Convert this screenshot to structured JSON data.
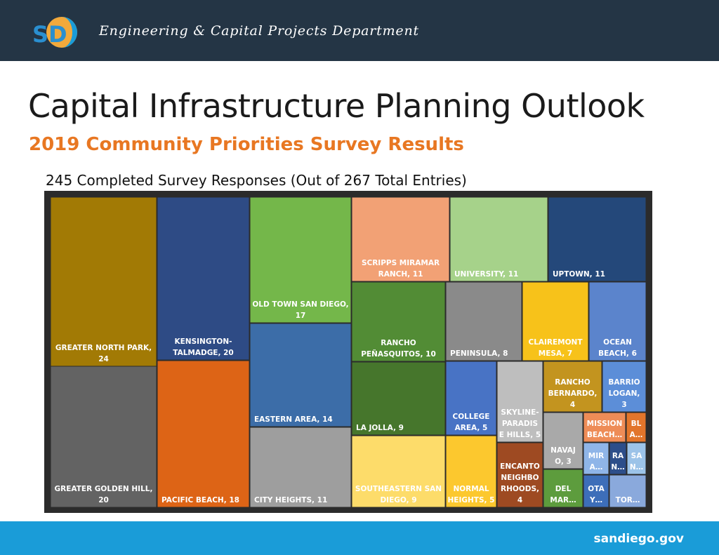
{
  "header": {
    "logo_text": "SD",
    "department": "Engineering & Capital Projects Department"
  },
  "page": {
    "title": "Capital Infrastructure Planning Outlook",
    "subtitle": "2019 Community Priorities Survey Results",
    "responses_note": "245 Completed Survey Responses (Out of 267 Total Entries)"
  },
  "footer": {
    "site": "sandiego.gov"
  },
  "colors": {
    "header_bg": "#243545",
    "footer_bg": "#1a9cd8",
    "accent_orange": "#e87722"
  },
  "chart_data": {
    "type": "treemap",
    "nodes": [
      {
        "label": "GREATER NORTH PARK, 24",
        "value": 24,
        "color": "#a27a05"
      },
      {
        "label": "GREATER GOLDEN HILL, 20",
        "value": 20,
        "color": "#636363"
      },
      {
        "label": "KENSINGTON-TALMADGE, 20",
        "value": 20,
        "color": "#2e4b85"
      },
      {
        "label": "PACIFIC BEACH, 18",
        "value": 18,
        "color": "#dd6416"
      },
      {
        "label": "OLD TOWN SAN DIEGO, 17",
        "value": 17,
        "color": "#74b74a"
      },
      {
        "label": "EASTERN AREA, 14",
        "value": 14,
        "color": "#3c6da8"
      },
      {
        "label": "CITY HEIGHTS, 11",
        "value": 11,
        "color": "#9e9e9e"
      },
      {
        "label": "SCRIPPS MIRAMAR RANCH, 11",
        "value": 11,
        "color": "#f2a175"
      },
      {
        "label": "UNIVERSITY, 11",
        "value": 11,
        "color": "#a6d28a"
      },
      {
        "label": "UPTOWN, 11",
        "value": 11,
        "color": "#24487a"
      },
      {
        "label": "RANCHO PEÑASQUITOS, 10",
        "value": 10,
        "color": "#528c35"
      },
      {
        "label": "LA JOLLA, 9",
        "value": 9,
        "color": "#46762c"
      },
      {
        "label": "SOUTHEASTERN SAN DIEGO, 9",
        "value": 9,
        "color": "#fddc6a"
      },
      {
        "label": "PENINSULA, 8",
        "value": 8,
        "color": "#8a8a8a"
      },
      {
        "label": "CLAIREMONT MESA, 7",
        "value": 7,
        "color": "#f7c21a"
      },
      {
        "label": "OCEAN BEACH, 6",
        "value": 6,
        "color": "#5b84cc"
      },
      {
        "label": "COLLEGE AREA, 5",
        "value": 5,
        "color": "#4873c5"
      },
      {
        "label": "SKYLINE-PARADISE HILLS, 5",
        "value": 5,
        "color": "#bebebe"
      },
      {
        "label": "NORMAL HEIGHTS, 5",
        "value": 5,
        "color": "#fcc82e"
      },
      {
        "label": "ENCANTO NEIGHBORHOODS, 4",
        "value": 4,
        "color": "#9e4a22"
      },
      {
        "label": "RANCHO BERNARDO, 4",
        "value": 4,
        "color": "#c3941f"
      },
      {
        "label": "BARRIO LOGAN, 3",
        "value": 3,
        "color": "#5c8ed8"
      },
      {
        "label": "NAVAJO, 3",
        "value": 3,
        "color": "#a9a9a9"
      },
      {
        "label": "MISSION BEACH…",
        "value": null,
        "color": "#ee8c57"
      },
      {
        "label": "BL A…",
        "value": null,
        "color": "#e2752b"
      },
      {
        "label": "DEL MAR…",
        "value": null,
        "color": "#5d9c3d"
      },
      {
        "label": "MIR A…",
        "value": null,
        "color": "#8fb5e8"
      },
      {
        "label": "RA N…",
        "value": null,
        "color": "#2d4e8a"
      },
      {
        "label": "SA N…",
        "value": null,
        "color": "#9cc3e8"
      },
      {
        "label": "OTA Y…",
        "value": null,
        "color": "#3d6eb9"
      },
      {
        "label": "TOR…",
        "value": null,
        "color": "#8aa9dc"
      }
    ]
  }
}
